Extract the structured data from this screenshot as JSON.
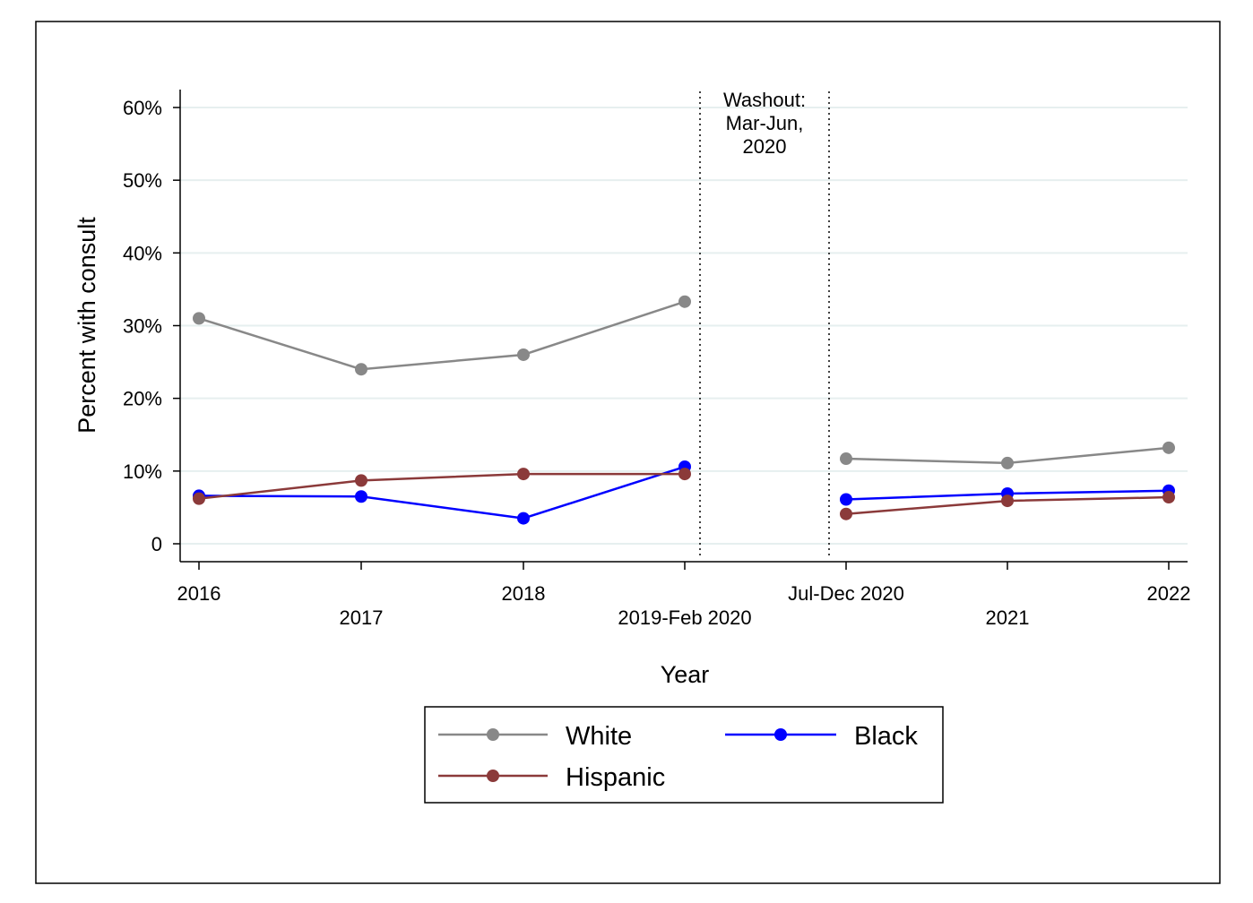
{
  "chart_data": {
    "type": "line",
    "xlabel": "Year",
    "ylabel": "Percent with consult",
    "ylim": [
      0,
      0.6
    ],
    "y_ticks": [
      {
        "value": 0,
        "label": "0"
      },
      {
        "value": 0.1,
        "label": "10%"
      },
      {
        "value": 0.2,
        "label": "20%"
      },
      {
        "value": 0.3,
        "label": "30%"
      },
      {
        "value": 0.4,
        "label": "40%"
      },
      {
        "value": 0.5,
        "label": "50%"
      },
      {
        "value": 0.6,
        "label": "60%"
      }
    ],
    "categories": [
      "2016",
      "2017",
      "2018",
      "2019-Feb 2020",
      "Jul-Dec 2020",
      "2021",
      "2022"
    ],
    "annotation": {
      "lines": [
        "Washout:",
        "Mar-Jun,",
        "2020"
      ]
    },
    "grid": true,
    "legend_position": "bottom",
    "series": [
      {
        "name": "White",
        "color": "#888888",
        "values": [
          0.31,
          0.24,
          0.26,
          0.333,
          0.117,
          0.111,
          0.132
        ]
      },
      {
        "name": "Black",
        "color": "#0000ff",
        "values": [
          0.066,
          0.065,
          0.035,
          0.106,
          0.061,
          0.069,
          0.073
        ]
      },
      {
        "name": "Hispanic",
        "color": "#8b3a3a",
        "values": [
          0.062,
          0.087,
          0.096,
          0.096,
          0.041,
          0.059,
          0.064
        ]
      }
    ]
  }
}
